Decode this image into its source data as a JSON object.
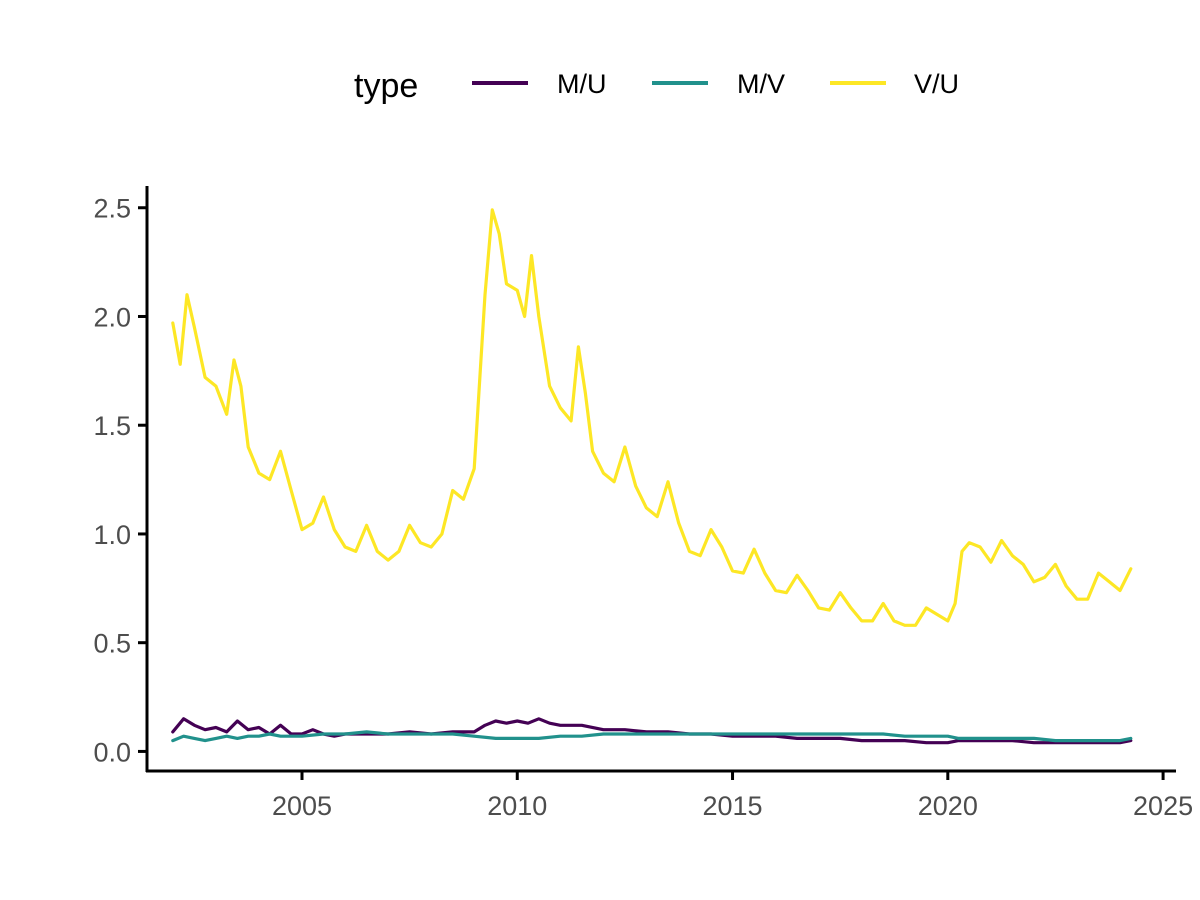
{
  "chart_data": {
    "type": "line",
    "title": "",
    "xlabel": "",
    "ylabel": "",
    "legend": {
      "title": "type",
      "position": "top"
    },
    "xlim": [
      2001.4,
      2025.3
    ],
    "ylim": [
      -0.09,
      2.6
    ],
    "x_ticks": [
      2005,
      2010,
      2015,
      2020,
      2025
    ],
    "x_tick_labels": [
      "2005",
      "2010",
      "2015",
      "2020",
      "2025"
    ],
    "y_ticks": [
      0.0,
      0.5,
      1.0,
      1.5,
      2.0,
      2.5
    ],
    "y_tick_labels": [
      "0.0",
      "0.5",
      "1.0",
      "1.5",
      "2.0",
      "2.5"
    ],
    "grid": false,
    "series": [
      {
        "name": "M/U",
        "color": "#440154",
        "x": [
          2002.0,
          2002.25,
          2002.5,
          2002.75,
          2003.0,
          2003.25,
          2003.5,
          2003.75,
          2004.0,
          2004.25,
          2004.5,
          2004.75,
          2005.0,
          2005.25,
          2005.5,
          2005.75,
          2006.0,
          2006.5,
          2007.0,
          2007.5,
          2008.0,
          2008.5,
          2009.0,
          2009.25,
          2009.5,
          2009.75,
          2010.0,
          2010.25,
          2010.5,
          2010.75,
          2011.0,
          2011.5,
          2012.0,
          2012.5,
          2013.0,
          2013.5,
          2014.0,
          2014.5,
          2015.0,
          2015.5,
          2016.0,
          2016.5,
          2017.0,
          2017.5,
          2018.0,
          2018.5,
          2019.0,
          2019.5,
          2020.0,
          2020.25,
          2020.5,
          2021.0,
          2021.5,
          2022.0,
          2022.5,
          2023.0,
          2023.5,
          2024.0,
          2024.25
        ],
        "y": [
          0.09,
          0.15,
          0.12,
          0.1,
          0.11,
          0.09,
          0.14,
          0.1,
          0.11,
          0.08,
          0.12,
          0.08,
          0.08,
          0.1,
          0.08,
          0.07,
          0.08,
          0.08,
          0.08,
          0.09,
          0.08,
          0.09,
          0.09,
          0.12,
          0.14,
          0.13,
          0.14,
          0.13,
          0.15,
          0.13,
          0.12,
          0.12,
          0.1,
          0.1,
          0.09,
          0.09,
          0.08,
          0.08,
          0.07,
          0.07,
          0.07,
          0.06,
          0.06,
          0.06,
          0.05,
          0.05,
          0.05,
          0.04,
          0.04,
          0.05,
          0.05,
          0.05,
          0.05,
          0.04,
          0.04,
          0.04,
          0.04,
          0.04,
          0.05
        ]
      },
      {
        "name": "M/V",
        "color": "#21918c",
        "x": [
          2002.0,
          2002.25,
          2002.5,
          2002.75,
          2003.0,
          2003.25,
          2003.5,
          2003.75,
          2004.0,
          2004.25,
          2004.5,
          2004.75,
          2005.0,
          2005.5,
          2006.0,
          2006.5,
          2007.0,
          2007.5,
          2008.0,
          2008.5,
          2009.0,
          2009.5,
          2010.0,
          2010.5,
          2011.0,
          2011.5,
          2012.0,
          2012.5,
          2013.0,
          2013.5,
          2014.0,
          2014.5,
          2015.0,
          2015.5,
          2016.0,
          2016.5,
          2017.0,
          2017.5,
          2018.0,
          2018.5,
          2019.0,
          2019.5,
          2020.0,
          2020.25,
          2020.5,
          2021.0,
          2021.5,
          2022.0,
          2022.5,
          2023.0,
          2023.5,
          2024.0,
          2024.25
        ],
        "y": [
          0.05,
          0.07,
          0.06,
          0.05,
          0.06,
          0.07,
          0.06,
          0.07,
          0.07,
          0.08,
          0.07,
          0.07,
          0.07,
          0.08,
          0.08,
          0.09,
          0.08,
          0.08,
          0.08,
          0.08,
          0.07,
          0.06,
          0.06,
          0.06,
          0.07,
          0.07,
          0.08,
          0.08,
          0.08,
          0.08,
          0.08,
          0.08,
          0.08,
          0.08,
          0.08,
          0.08,
          0.08,
          0.08,
          0.08,
          0.08,
          0.07,
          0.07,
          0.07,
          0.06,
          0.06,
          0.06,
          0.06,
          0.06,
          0.05,
          0.05,
          0.05,
          0.05,
          0.06
        ]
      },
      {
        "name": "V/U",
        "color": "#fde725",
        "x": [
          2002.0,
          2002.17,
          2002.33,
          2002.5,
          2002.75,
          2003.0,
          2003.25,
          2003.42,
          2003.58,
          2003.75,
          2004.0,
          2004.25,
          2004.5,
          2004.75,
          2005.0,
          2005.25,
          2005.5,
          2005.75,
          2006.0,
          2006.25,
          2006.5,
          2006.75,
          2007.0,
          2007.25,
          2007.5,
          2007.75,
          2008.0,
          2008.25,
          2008.5,
          2008.75,
          2009.0,
          2009.25,
          2009.42,
          2009.58,
          2009.75,
          2010.0,
          2010.17,
          2010.33,
          2010.5,
          2010.75,
          2011.0,
          2011.25,
          2011.42,
          2011.58,
          2011.75,
          2012.0,
          2012.25,
          2012.5,
          2012.75,
          2013.0,
          2013.25,
          2013.5,
          2013.75,
          2014.0,
          2014.25,
          2014.5,
          2014.75,
          2015.0,
          2015.25,
          2015.5,
          2015.75,
          2016.0,
          2016.25,
          2016.5,
          2016.75,
          2017.0,
          2017.25,
          2017.5,
          2017.75,
          2018.0,
          2018.25,
          2018.5,
          2018.75,
          2019.0,
          2019.25,
          2019.5,
          2019.75,
          2020.0,
          2020.17,
          2020.33,
          2020.5,
          2020.75,
          2021.0,
          2021.25,
          2021.5,
          2021.75,
          2022.0,
          2022.25,
          2022.5,
          2022.75,
          2023.0,
          2023.25,
          2023.5,
          2023.75,
          2024.0,
          2024.25
        ],
        "y": [
          1.97,
          1.78,
          2.1,
          1.95,
          1.72,
          1.68,
          1.55,
          1.8,
          1.68,
          1.4,
          1.28,
          1.25,
          1.38,
          1.2,
          1.02,
          1.05,
          1.17,
          1.02,
          0.94,
          0.92,
          1.04,
          0.92,
          0.88,
          0.92,
          1.04,
          0.96,
          0.94,
          1.0,
          1.2,
          1.16,
          1.3,
          2.1,
          2.49,
          2.38,
          2.15,
          2.12,
          2.0,
          2.28,
          2.0,
          1.68,
          1.58,
          1.52,
          1.86,
          1.65,
          1.38,
          1.28,
          1.24,
          1.4,
          1.22,
          1.12,
          1.08,
          1.24,
          1.05,
          0.92,
          0.9,
          1.02,
          0.94,
          0.83,
          0.82,
          0.93,
          0.82,
          0.74,
          0.73,
          0.81,
          0.74,
          0.66,
          0.65,
          0.73,
          0.66,
          0.6,
          0.6,
          0.68,
          0.6,
          0.58,
          0.58,
          0.66,
          0.63,
          0.6,
          0.68,
          0.92,
          0.96,
          0.94,
          0.87,
          0.97,
          0.9,
          0.86,
          0.78,
          0.8,
          0.86,
          0.76,
          0.7,
          0.7,
          0.82,
          0.78,
          0.74,
          0.84
        ]
      }
    ]
  }
}
